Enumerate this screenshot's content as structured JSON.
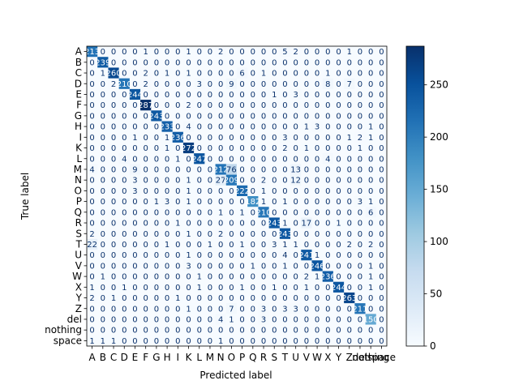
{
  "chart_data": {
    "type": "heatmap",
    "title": "",
    "xlabel": "Predicted label",
    "ylabel": "True label",
    "labels": [
      "A",
      "B",
      "C",
      "D",
      "E",
      "F",
      "G",
      "H",
      "I",
      "K",
      "L",
      "M",
      "N",
      "O",
      "P",
      "Q",
      "R",
      "S",
      "T",
      "U",
      "V",
      "W",
      "X",
      "Y",
      "Z",
      "del",
      "nothing",
      "space"
    ],
    "colorbar": {
      "ticks": [
        0,
        50,
        100,
        150,
        200,
        250
      ],
      "range": [
        0,
        287
      ],
      "colormap": "Blues"
    },
    "matrix": [
      [
        213,
        0,
        0,
        0,
        0,
        1,
        0,
        0,
        0,
        1,
        0,
        0,
        2,
        0,
        0,
        0,
        0,
        0,
        5,
        2,
        0,
        0,
        0,
        0,
        1,
        0,
        0,
        0
      ],
      [
        0,
        239,
        0,
        0,
        0,
        0,
        0,
        0,
        0,
        0,
        0,
        0,
        0,
        0,
        0,
        0,
        0,
        0,
        0,
        0,
        0,
        0,
        0,
        0,
        0,
        0,
        0,
        0
      ],
      [
        0,
        1,
        260,
        0,
        0,
        2,
        0,
        1,
        0,
        1,
        0,
        0,
        0,
        0,
        6,
        0,
        1,
        0,
        0,
        0,
        0,
        0,
        1,
        0,
        0,
        0,
        0,
        0
      ],
      [
        0,
        0,
        2,
        210,
        0,
        2,
        0,
        0,
        0,
        0,
        3,
        0,
        0,
        9,
        0,
        0,
        0,
        0,
        0,
        0,
        0,
        0,
        8,
        0,
        7,
        0,
        0,
        0
      ],
      [
        0,
        0,
        0,
        0,
        244,
        0,
        0,
        0,
        0,
        0,
        0,
        0,
        0,
        0,
        0,
        0,
        0,
        1,
        0,
        3,
        0,
        0,
        0,
        0,
        0,
        0,
        0,
        0
      ],
      [
        0,
        0,
        0,
        0,
        0,
        287,
        0,
        0,
        0,
        2,
        0,
        0,
        0,
        0,
        0,
        0,
        0,
        0,
        0,
        0,
        0,
        0,
        0,
        0,
        0,
        0,
        0,
        0
      ],
      [
        0,
        0,
        0,
        0,
        0,
        0,
        243,
        0,
        0,
        0,
        0,
        0,
        0,
        0,
        0,
        0,
        0,
        0,
        0,
        0,
        0,
        0,
        0,
        0,
        0,
        0,
        0,
        0
      ],
      [
        0,
        0,
        0,
        0,
        0,
        0,
        0,
        233,
        0,
        4,
        0,
        0,
        0,
        0,
        0,
        0,
        0,
        0,
        0,
        0,
        1,
        3,
        0,
        0,
        0,
        0,
        1,
        0
      ],
      [
        0,
        0,
        0,
        0,
        1,
        0,
        0,
        1,
        236,
        0,
        0,
        0,
        0,
        0,
        0,
        0,
        0,
        0,
        3,
        0,
        0,
        0,
        0,
        0,
        1,
        2,
        1,
        0
      ],
      [
        0,
        0,
        0,
        0,
        0,
        0,
        0,
        1,
        0,
        272,
        0,
        0,
        0,
        0,
        0,
        0,
        0,
        0,
        2,
        0,
        1,
        0,
        0,
        0,
        0,
        1,
        0,
        0
      ],
      [
        0,
        0,
        0,
        4,
        0,
        0,
        0,
        0,
        1,
        0,
        247,
        0,
        0,
        0,
        0,
        0,
        0,
        0,
        0,
        0,
        0,
        0,
        4,
        0,
        0,
        0,
        0,
        0
      ],
      [
        4,
        0,
        0,
        0,
        9,
        0,
        0,
        0,
        0,
        0,
        0,
        0,
        212,
        76,
        0,
        0,
        0,
        0,
        0,
        13,
        0,
        0,
        0,
        0,
        0,
        0,
        0,
        0
      ],
      [
        0,
        0,
        0,
        0,
        3,
        0,
        0,
        0,
        0,
        1,
        0,
        0,
        27,
        209,
        0,
        0,
        2,
        0,
        0,
        12,
        0,
        0,
        0,
        0,
        0,
        0,
        0,
        0
      ],
      [
        0,
        0,
        0,
        0,
        3,
        0,
        0,
        0,
        0,
        1,
        0,
        0,
        0,
        0,
        222,
        0,
        1,
        0,
        0,
        0,
        0,
        0,
        0,
        0,
        0,
        0,
        0,
        0
      ],
      [
        0,
        0,
        0,
        0,
        0,
        0,
        1,
        3,
        0,
        1,
        0,
        0,
        0,
        0,
        0,
        182,
        1,
        0,
        1,
        0,
        0,
        0,
        0,
        0,
        0,
        3,
        1,
        0
      ],
      [
        0,
        0,
        0,
        0,
        0,
        0,
        0,
        0,
        0,
        0,
        0,
        0,
        1,
        0,
        1,
        0,
        210,
        0,
        0,
        0,
        0,
        0,
        0,
        0,
        0,
        0,
        6,
        0
      ],
      [
        0,
        0,
        0,
        0,
        0,
        0,
        0,
        0,
        1,
        0,
        0,
        0,
        0,
        0,
        0,
        0,
        0,
        243,
        1,
        0,
        17,
        0,
        0,
        1,
        0,
        0,
        0,
        0
      ],
      [
        2,
        0,
        0,
        0,
        0,
        0,
        0,
        0,
        0,
        1,
        0,
        0,
        2,
        0,
        0,
        0,
        0,
        0,
        243,
        0,
        0,
        0,
        0,
        0,
        0,
        0,
        0,
        0
      ],
      [
        22,
        0,
        0,
        0,
        0,
        0,
        0,
        1,
        0,
        0,
        0,
        1,
        0,
        0,
        1,
        0,
        0,
        3,
        1,
        1,
        0,
        0,
        0,
        0,
        2,
        0,
        2,
        0
      ],
      [
        0,
        0,
        0,
        0,
        0,
        0,
        0,
        0,
        0,
        1,
        0,
        0,
        0,
        0,
        0,
        0,
        0,
        0,
        4,
        0,
        241,
        1,
        0,
        0,
        0,
        0,
        0,
        0
      ],
      [
        0,
        0,
        0,
        0,
        0,
        0,
        0,
        0,
        0,
        3,
        0,
        0,
        0,
        0,
        0,
        1,
        0,
        0,
        1,
        0,
        0,
        246,
        0,
        0,
        0,
        0,
        1,
        0
      ],
      [
        0,
        1,
        0,
        0,
        0,
        0,
        0,
        0,
        0,
        0,
        1,
        0,
        0,
        0,
        0,
        0,
        0,
        0,
        0,
        0,
        2,
        1,
        236,
        0,
        0,
        0,
        1,
        0
      ],
      [
        1,
        0,
        0,
        1,
        0,
        0,
        0,
        0,
        0,
        0,
        1,
        0,
        0,
        0,
        1,
        0,
        0,
        1,
        0,
        0,
        1,
        0,
        0,
        244,
        0,
        0,
        1,
        0
      ],
      [
        2,
        0,
        1,
        0,
        0,
        0,
        0,
        0,
        1,
        0,
        0,
        0,
        0,
        0,
        0,
        0,
        0,
        0,
        0,
        0,
        0,
        0,
        0,
        0,
        263,
        0,
        0,
        0
      ],
      [
        0,
        0,
        0,
        0,
        0,
        0,
        0,
        0,
        0,
        1,
        0,
        0,
        0,
        7,
        0,
        0,
        3,
        0,
        3,
        3,
        0,
        0,
        0,
        0,
        0,
        211,
        0,
        0
      ],
      [
        0,
        0,
        0,
        0,
        0,
        0,
        0,
        0,
        0,
        0,
        0,
        0,
        4,
        1,
        0,
        0,
        3,
        0,
        0,
        0,
        0,
        0,
        0,
        0,
        0,
        0,
        150,
        0
      ],
      [
        0,
        0,
        0,
        0,
        0,
        0,
        0,
        0,
        0,
        0,
        0,
        0,
        0,
        0,
        0,
        0,
        0,
        0,
        0,
        0,
        0,
        0,
        0,
        0,
        0,
        0,
        0,
        0
      ],
      [
        1,
        1,
        1,
        0,
        0,
        0,
        0,
        0,
        0,
        0,
        0,
        0,
        1,
        0,
        0,
        0,
        0,
        0,
        0,
        0,
        0,
        0,
        0,
        0,
        0,
        0,
        0,
        0
      ]
    ]
  }
}
